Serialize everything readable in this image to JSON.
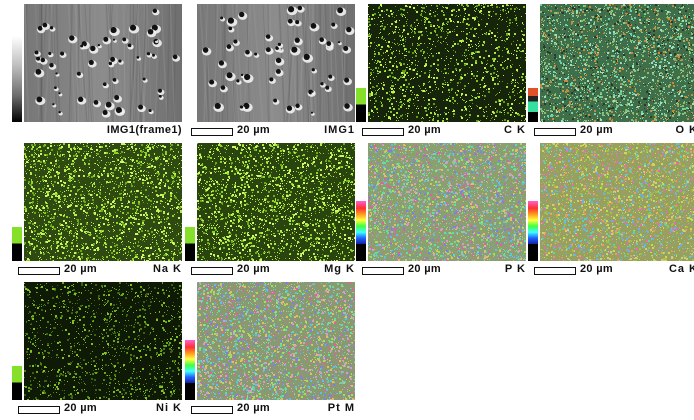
{
  "panels": [
    {
      "kind": "sem",
      "caption": "IMG1(frame1)",
      "scale": "",
      "bar": "gray"
    },
    {
      "kind": "sem",
      "caption": "IMG1",
      "scale": "20 µm",
      "bar": "none"
    },
    {
      "kind": "map",
      "caption": "C K",
      "scale": "20 µm",
      "bar": "green",
      "bg": "#16240b",
      "colors": [
        "#7fbf1e",
        "#a8e03a",
        "#5e9a14",
        "#c8f050"
      ],
      "density": 0.45
    },
    {
      "kind": "map",
      "caption": "O K",
      "scale": "20 µm",
      "bar": "orange",
      "bg": "#3f6f4a",
      "colors": [
        "#6fd1a8",
        "#9be0c0",
        "#c98a3a",
        "#2b3a2a",
        "#88c070"
      ],
      "density": 0.9
    },
    {
      "kind": "map",
      "caption": "Na K",
      "scale": "20 µm",
      "bar": "green",
      "bg": "#2e4a12",
      "colors": [
        "#8fd424",
        "#b6ec48",
        "#6aa818",
        "#d4f56a"
      ],
      "density": 0.7
    },
    {
      "kind": "map",
      "caption": "Mg K",
      "scale": "20 µm",
      "bar": "green",
      "bg": "#2a4410",
      "colors": [
        "#8fd424",
        "#b6ec48",
        "#6aa818",
        "#d4f56a"
      ],
      "density": 0.68
    },
    {
      "kind": "map",
      "caption": "P K",
      "scale": "20 µm",
      "bar": "rainbow",
      "bg": "#8aa070",
      "colors": [
        "#e060a0",
        "#60c0e0",
        "#a0e060",
        "#e0c060",
        "#8080e0",
        "#60e0a0",
        "#d0a0c0"
      ],
      "density": 1.0
    },
    {
      "kind": "map",
      "caption": "Ca K",
      "scale": "20 µm",
      "bar": "rainbow",
      "bg": "#98a060",
      "colors": [
        "#c0e050",
        "#e0a060",
        "#60d0b0",
        "#e070b0",
        "#a0c040",
        "#d0d070",
        "#70b0e0"
      ],
      "density": 1.0
    },
    {
      "kind": "map",
      "caption": "Ni K",
      "scale": "20 µm",
      "bar": "green",
      "bg": "#0f1a06",
      "colors": [
        "#4d7d14",
        "#6aa818",
        "#3a6010",
        "#88c020"
      ],
      "density": 0.4
    },
    {
      "kind": "map",
      "caption": "Pt M",
      "scale": "20 µm",
      "bar": "rainbow",
      "bg": "#8a9a70",
      "colors": [
        "#e060a0",
        "#60c0e0",
        "#a0e060",
        "#e0c060",
        "#8080e0",
        "#60e0a0",
        "#d0a0c0"
      ],
      "density": 1.0
    }
  ]
}
